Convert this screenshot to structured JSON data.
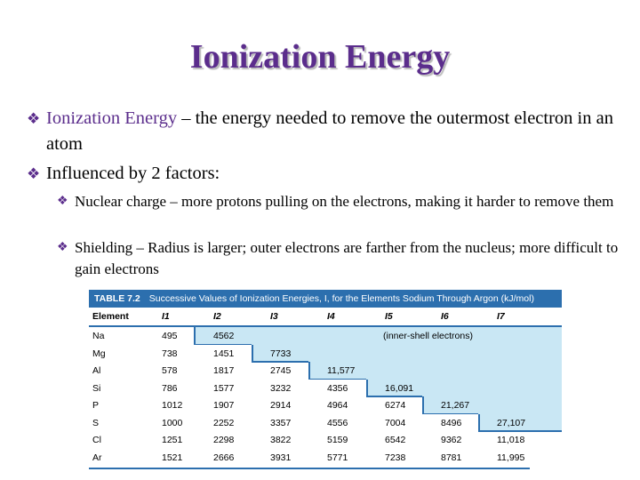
{
  "title": "Ionization Energy",
  "bullets": [
    {
      "highlight": "Ionization Energy",
      "text": " – the energy needed to remove the outermost electron in an atom"
    },
    {
      "text": "Influenced by 2 factors:"
    }
  ],
  "subbullets": [
    {
      "text": "Nuclear charge – more protons pulling on the electrons, making it harder to remove them"
    },
    {
      "text": "Shielding – Radius is larger; outer electrons are farther from the nucleus; more difficult to gain electrons"
    }
  ],
  "bullet_icon": "diamond-bullet-icon",
  "colors": {
    "title": "#5b2d8c",
    "table_header": "#2c6fae",
    "table_shade": "#c9e7f4"
  },
  "table": {
    "number": "TABLE 7.2",
    "caption": "Successive Values of Ionization Energies, I, for the Elements Sodium Through Argon (kJ/mol)",
    "headers": [
      "Element",
      "I1",
      "I2",
      "I3",
      "I4",
      "I5",
      "I6",
      "I7"
    ],
    "shaded_label": "(inner-shell electrons)",
    "rows": [
      [
        "Na",
        "495",
        "4562",
        "",
        "",
        "",
        "",
        ""
      ],
      [
        "Mg",
        "738",
        "1451",
        "7733",
        "",
        "",
        "",
        ""
      ],
      [
        "Al",
        "578",
        "1817",
        "2745",
        "11,577",
        "",
        "",
        ""
      ],
      [
        "Si",
        "786",
        "1577",
        "3232",
        "4356",
        "16,091",
        "",
        ""
      ],
      [
        "P",
        "1012",
        "1907",
        "2914",
        "4964",
        "6274",
        "21,267",
        ""
      ],
      [
        "S",
        "1000",
        "2252",
        "3357",
        "4556",
        "7004",
        "8496",
        "27,107"
      ],
      [
        "Cl",
        "1251",
        "2298",
        "3822",
        "5159",
        "6542",
        "9362",
        "11,018"
      ],
      [
        "Ar",
        "1521",
        "2666",
        "3931",
        "5771",
        "7238",
        "8781",
        "11,995"
      ]
    ]
  }
}
